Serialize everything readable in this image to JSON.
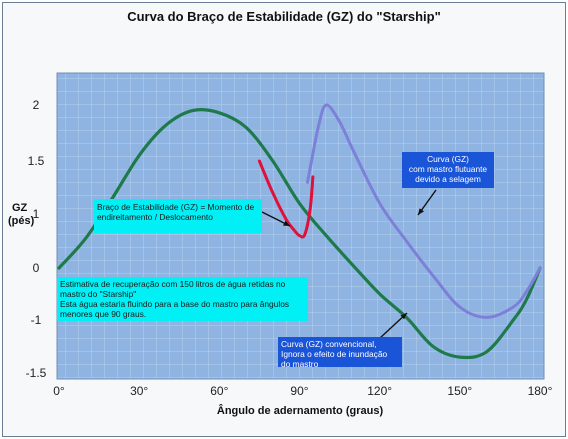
{
  "chart_data": {
    "type": "line",
    "title": "Curva do Braço de Estabilidade (GZ) do \"Starship\"",
    "xlabel": "Ângulo de adernamento (graus)",
    "ylabel": "GZ\n(pés)",
    "xlim": [
      0,
      180
    ],
    "ylim": [
      -1.5,
      2.2
    ],
    "grid": true,
    "x_ticks": [
      "0°",
      "30°",
      "60°",
      "90°",
      "120°",
      "150°",
      "180°"
    ],
    "y_ticks": [
      "2",
      "1.5",
      "1",
      "0",
      "-1",
      "-1.5"
    ],
    "series": [
      {
        "name": "Curva (GZ) convencional",
        "color": "#1e7a4a",
        "x": [
          0,
          10,
          20,
          30,
          40,
          50,
          60,
          70,
          80,
          90,
          100,
          110,
          120,
          130,
          140,
          150,
          160,
          170,
          175,
          180
        ],
        "y": [
          0,
          0.55,
          1.15,
          1.55,
          1.82,
          1.95,
          1.93,
          1.8,
          1.5,
          1.1,
          0.6,
          0.05,
          -0.5,
          -0.95,
          -1.25,
          -1.35,
          -1.3,
          -1.0,
          -0.6,
          0.0
        ]
      },
      {
        "name": "Curva (GZ) com mastro flutuante",
        "color": "#7d80d8",
        "x": [
          93,
          97,
          100,
          105,
          110,
          120,
          130,
          140,
          150,
          160,
          170,
          175,
          180
        ],
        "y": [
          1.3,
          1.8,
          2.0,
          1.85,
          1.6,
          1.1,
          0.5,
          -0.15,
          -0.75,
          -0.95,
          -0.75,
          -0.45,
          0.0
        ]
      },
      {
        "name": "Estimativa de recuperação com 150 litros de água",
        "color": "#e0103a",
        "x": [
          75,
          80,
          85,
          88,
          90,
          92,
          94,
          95
        ],
        "y": [
          1.5,
          1.2,
          0.9,
          0.7,
          0.6,
          0.62,
          1.05,
          1.35
        ]
      }
    ],
    "annotations": [
      {
        "id": "righting",
        "text": "Braço de Estabilidade (GZ) = Momento de\nendireitamento / Deslocamento",
        "style": "cyan"
      },
      {
        "id": "recovery",
        "text": "Estimativa de recuperação com 150 litros de água retidas no\nmastro do \"Starship\"\nEsta água estaria fluindo para a base do mastro para ângulos\nmenores que 90 graus.",
        "style": "cyan"
      },
      {
        "id": "floating",
        "text": "Curva (GZ)\ncom mastro flutuante\ndevido a selagem",
        "style": "blue"
      },
      {
        "id": "conventional",
        "text": "Curva (GZ) convencional,\nIgnora o efeito de inundação\ndo mastro",
        "style": "blue"
      }
    ]
  }
}
